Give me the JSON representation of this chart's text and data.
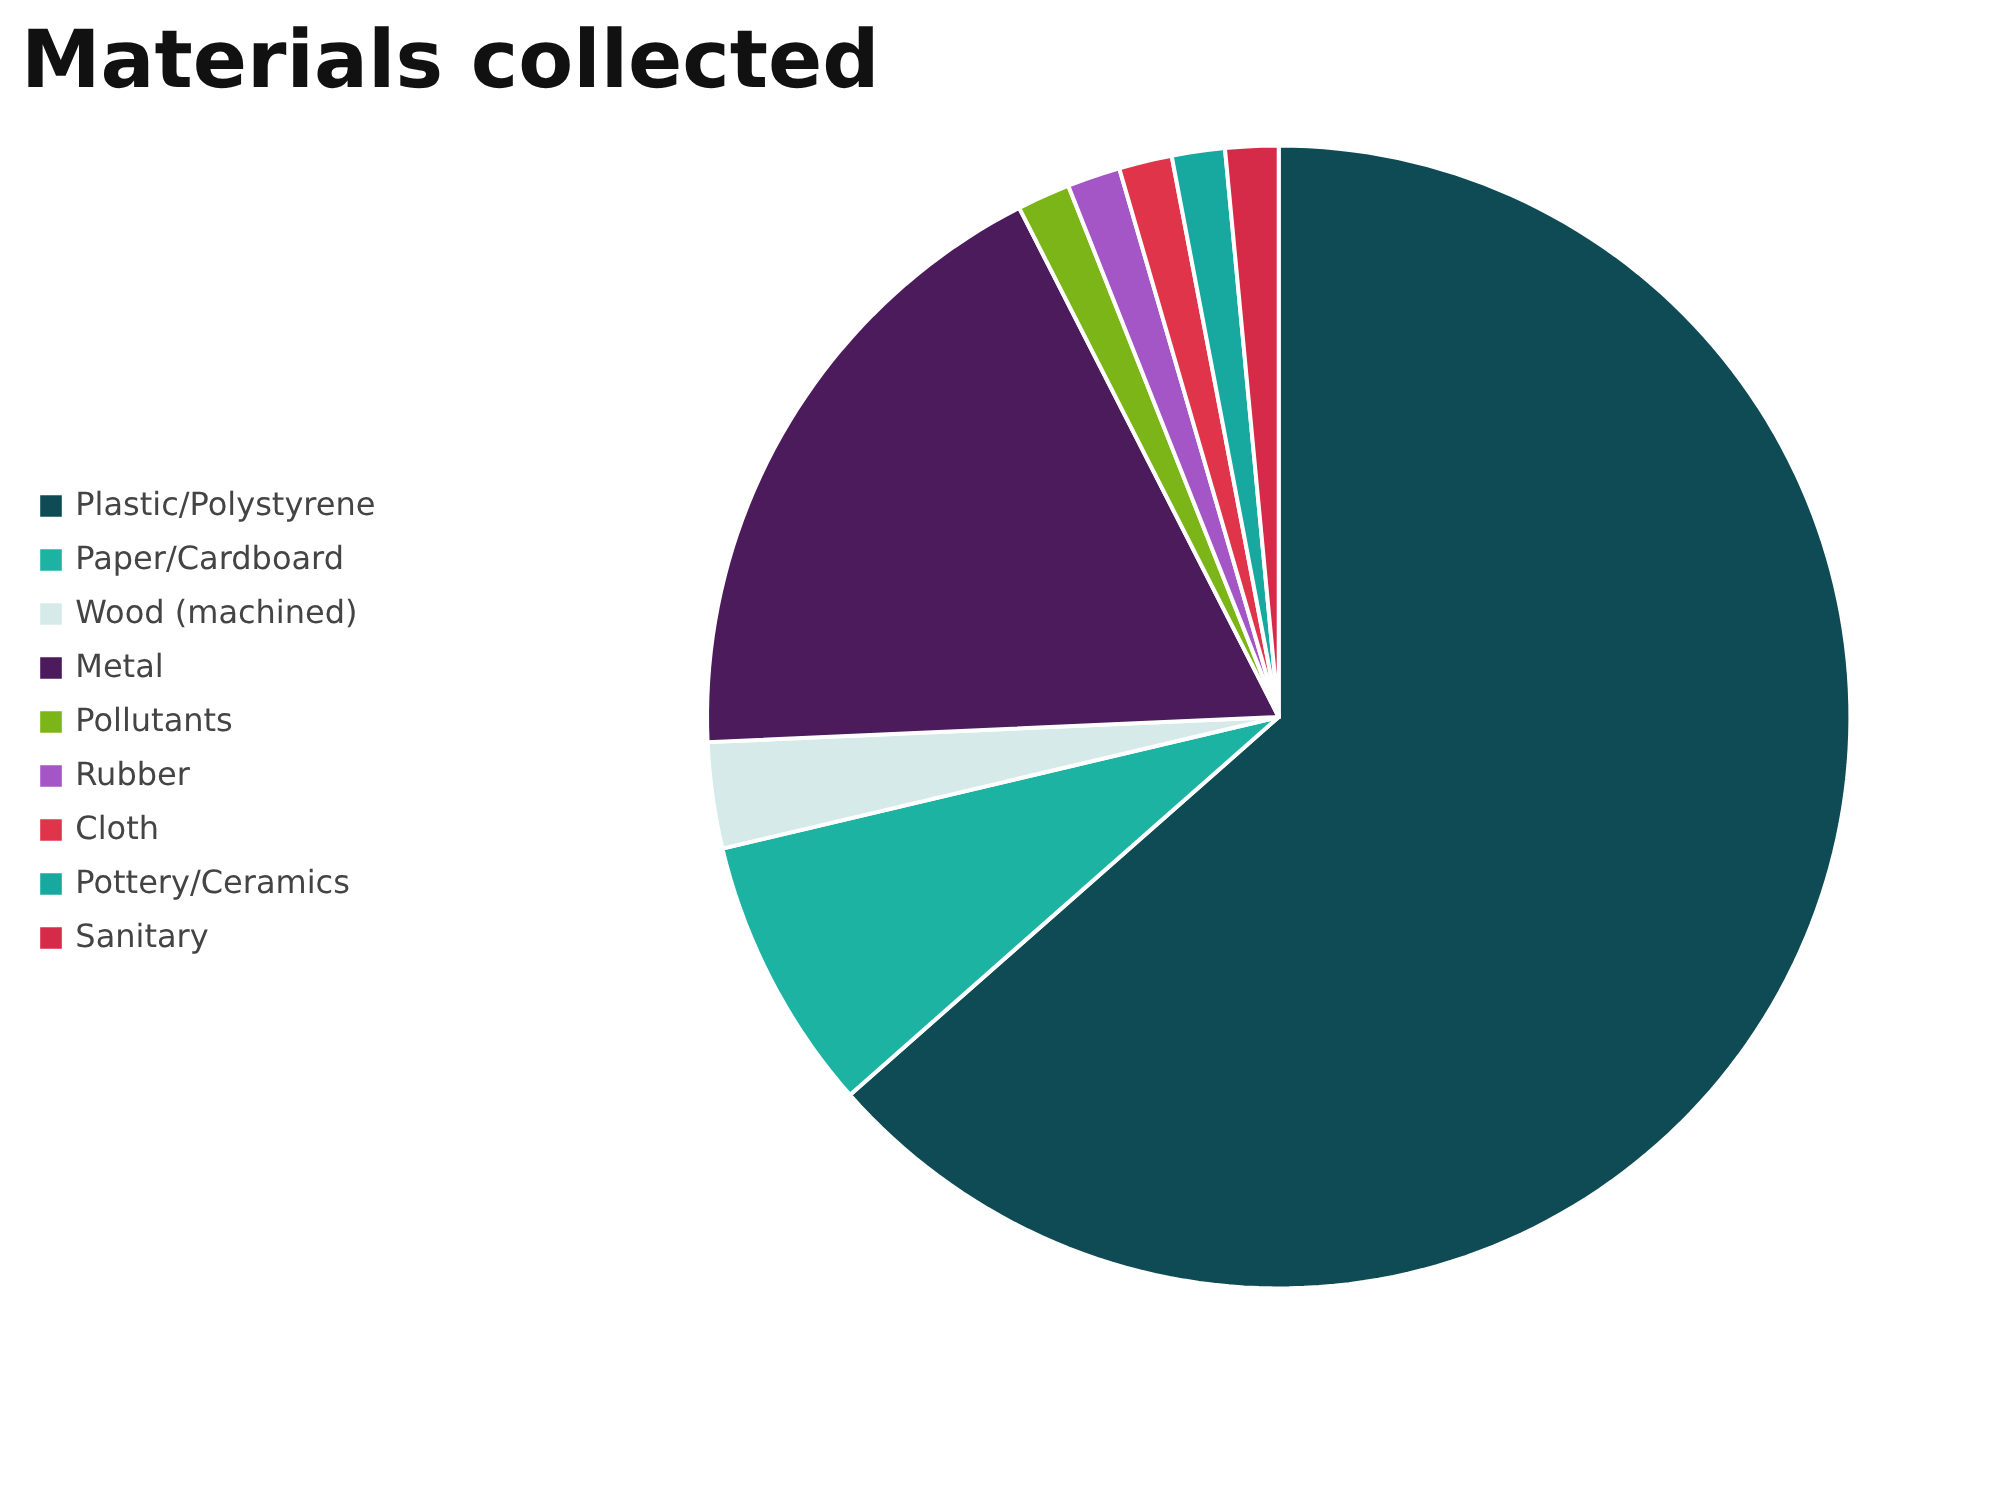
{
  "chart_data": {
    "type": "pie",
    "title": "Materials collected",
    "categories": [
      "Plastic/Polystyrene",
      "Paper/Cardboard",
      "Wood (machined)",
      "Metal",
      "Pollutants",
      "Rubber",
      "Cloth",
      "Pottery/Ceramics",
      "Sanitary"
    ],
    "values": [
      63.5,
      7.8,
      3,
      18.2,
      1.5,
      1.5,
      1.5,
      1.5,
      1.5
    ],
    "colors": [
      "#0e4b55",
      "#1db3a3",
      "#d6eaea",
      "#4b1b5c",
      "#7cb518",
      "#a455c6",
      "#e0344a",
      "#17a89f",
      "#d52a48"
    ],
    "legend": "left"
  }
}
